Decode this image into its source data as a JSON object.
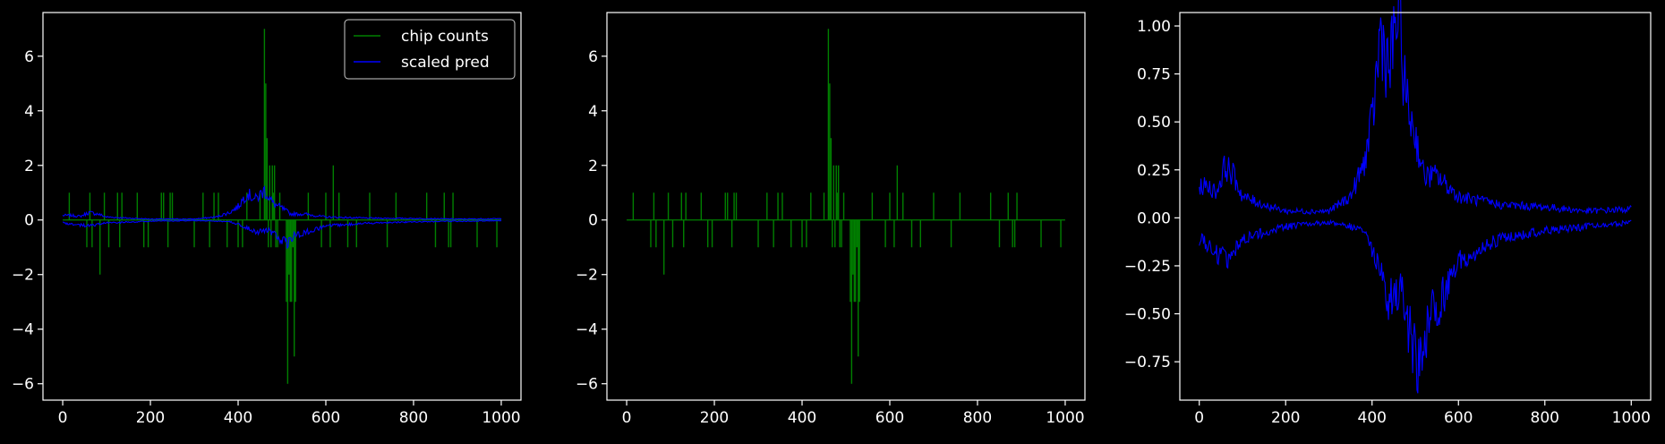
{
  "colors": {
    "background": "#000000",
    "axes": "#ffffff",
    "chip_counts": "#008000",
    "scaled_pred": "#0000ff",
    "legend_border": "#cccccc"
  },
  "chart_data": [
    {
      "type": "line",
      "title": "",
      "xlabel": "",
      "ylabel": "",
      "xlim": [
        -45,
        1045
      ],
      "ylim": [
        -6.6,
        7.6
      ],
      "xticks": [
        0,
        200,
        400,
        600,
        800,
        1000
      ],
      "yticks": [
        -6,
        -4,
        -2,
        0,
        2,
        4,
        6
      ],
      "xtick_labels": [
        "0",
        "200",
        "400",
        "600",
        "800",
        "1000"
      ],
      "ytick_labels": [
        "−6",
        "−4",
        "−2",
        "0",
        "2",
        "4",
        "6"
      ],
      "grid": false,
      "legend": {
        "placement": "top-right",
        "entries": [
          "chip counts",
          "scaled pred"
        ]
      },
      "series": [
        {
          "name": "chip counts",
          "color": "#008000",
          "style": "spikes",
          "x": [
            15,
            55,
            62,
            67,
            85,
            95,
            105,
            125,
            130,
            135,
            170,
            185,
            195,
            225,
            230,
            240,
            245,
            250,
            300,
            320,
            335,
            345,
            355,
            375,
            400,
            410,
            420,
            450,
            460,
            463,
            466,
            469,
            472,
            475,
            478,
            480,
            483,
            486,
            490,
            495,
            510,
            513,
            516,
            519,
            522,
            525,
            528,
            531,
            560,
            590,
            600,
            610,
            617,
            630,
            650,
            670,
            700,
            740,
            760,
            830,
            850,
            870,
            880,
            885,
            890,
            945,
            990
          ],
          "y": [
            1,
            -1,
            1,
            -1,
            -2,
            1,
            -1,
            1,
            -1,
            1,
            1,
            -1,
            -1,
            1,
            1,
            -1,
            1,
            1,
            -1,
            1,
            -1,
            1,
            1,
            -1,
            -1,
            -1,
            1,
            1,
            7,
            5,
            3,
            -1,
            2,
            -1,
            2,
            1,
            2,
            -1,
            -1,
            1,
            -3,
            -6,
            -2,
            -3,
            -3,
            -1,
            -5,
            -3,
            1,
            -1,
            1,
            -1,
            2,
            1,
            -1,
            -1,
            1,
            -1,
            1,
            1,
            -1,
            1,
            -1,
            -1,
            1,
            -1,
            -1
          ]
        },
        {
          "name": "scaled pred",
          "color": "#0000ff",
          "style": "envelope",
          "upper": [
            [
              0,
              0.15
            ],
            [
              20,
              0.15
            ],
            [
              40,
              0.12
            ],
            [
              60,
              0.25
            ],
            [
              80,
              0.2
            ],
            [
              100,
              0.1
            ],
            [
              150,
              0.06
            ],
            [
              200,
              0.03
            ],
            [
              300,
              0.03
            ],
            [
              350,
              0.1
            ],
            [
              380,
              0.25
            ],
            [
              400,
              0.45
            ],
            [
              420,
              0.9
            ],
            [
              440,
              0.7
            ],
            [
              460,
              1.0
            ],
            [
              480,
              0.55
            ],
            [
              500,
              0.4
            ],
            [
              520,
              0.2
            ],
            [
              550,
              0.2
            ],
            [
              600,
              0.1
            ],
            [
              700,
              0.06
            ],
            [
              800,
              0.05
            ],
            [
              900,
              0.03
            ],
            [
              1000,
              0.04
            ]
          ],
          "lower": [
            [
              0,
              -0.1
            ],
            [
              30,
              -0.15
            ],
            [
              60,
              -0.2
            ],
            [
              100,
              -0.1
            ],
            [
              200,
              -0.04
            ],
            [
              300,
              -0.02
            ],
            [
              380,
              -0.05
            ],
            [
              420,
              -0.25
            ],
            [
              440,
              -0.4
            ],
            [
              470,
              -0.35
            ],
            [
              500,
              -0.7
            ],
            [
              510,
              -0.8
            ],
            [
              530,
              -0.5
            ],
            [
              560,
              -0.4
            ],
            [
              600,
              -0.2
            ],
            [
              700,
              -0.1
            ],
            [
              800,
              -0.06
            ],
            [
              900,
              -0.04
            ],
            [
              1000,
              -0.02
            ]
          ]
        }
      ]
    },
    {
      "type": "line",
      "title": "",
      "xlabel": "",
      "ylabel": "",
      "xlim": [
        -45,
        1045
      ],
      "ylim": [
        -6.6,
        7.6
      ],
      "xticks": [
        0,
        200,
        400,
        600,
        800,
        1000
      ],
      "yticks": [
        -6,
        -4,
        -2,
        0,
        2,
        4,
        6
      ],
      "xtick_labels": [
        "0",
        "200",
        "400",
        "600",
        "800",
        "1000"
      ],
      "ytick_labels": [
        "−6",
        "−4",
        "−2",
        "0",
        "2",
        "4",
        "6"
      ],
      "grid": false,
      "series": [
        {
          "color": "#008000",
          "style": "spikes",
          "x": [
            15,
            55,
            62,
            67,
            85,
            95,
            105,
            125,
            130,
            135,
            170,
            185,
            195,
            225,
            230,
            240,
            245,
            250,
            300,
            320,
            335,
            345,
            355,
            375,
            400,
            410,
            420,
            450,
            460,
            463,
            466,
            469,
            472,
            475,
            478,
            480,
            483,
            486,
            490,
            495,
            510,
            513,
            516,
            519,
            522,
            525,
            528,
            531,
            560,
            590,
            600,
            610,
            617,
            630,
            650,
            670,
            700,
            740,
            760,
            830,
            850,
            870,
            880,
            885,
            890,
            945,
            990
          ],
          "y": [
            1,
            -1,
            1,
            -1,
            -2,
            1,
            -1,
            1,
            -1,
            1,
            1,
            -1,
            -1,
            1,
            1,
            -1,
            1,
            1,
            -1,
            1,
            -1,
            1,
            1,
            -1,
            -1,
            -1,
            1,
            1,
            7,
            5,
            3,
            -1,
            2,
            -1,
            2,
            1,
            2,
            -1,
            -1,
            1,
            -3,
            -6,
            -2,
            -3,
            -3,
            -1,
            -5,
            -3,
            1,
            -1,
            1,
            -1,
            2,
            1,
            -1,
            -1,
            1,
            -1,
            1,
            1,
            -1,
            1,
            -1,
            -1,
            1,
            -1,
            -1
          ]
        }
      ]
    },
    {
      "type": "line",
      "title": "",
      "xlabel": "",
      "ylabel": "",
      "xlim": [
        -45,
        1045
      ],
      "ylim": [
        -0.95,
        1.07
      ],
      "xticks": [
        0,
        200,
        400,
        600,
        800,
        1000
      ],
      "yticks": [
        -0.75,
        -0.5,
        -0.25,
        0.0,
        0.25,
        0.5,
        0.75,
        1.0
      ],
      "xtick_labels": [
        "0",
        "200",
        "400",
        "600",
        "800",
        "1000"
      ],
      "ytick_labels": [
        "−0.75",
        "−0.50",
        "−0.25",
        "0.00",
        "0.25",
        "0.50",
        "0.75",
        "1.00"
      ],
      "grid": false,
      "series": [
        {
          "color": "#0000ff",
          "style": "envelope",
          "upper": [
            [
              0,
              0.15
            ],
            [
              20,
              0.15
            ],
            [
              40,
              0.12
            ],
            [
              60,
              0.25
            ],
            [
              80,
              0.2
            ],
            [
              100,
              0.1
            ],
            [
              150,
              0.06
            ],
            [
              200,
              0.03
            ],
            [
              300,
              0.03
            ],
            [
              350,
              0.1
            ],
            [
              380,
              0.25
            ],
            [
              400,
              0.45
            ],
            [
              420,
              0.9
            ],
            [
              440,
              0.7
            ],
            [
              460,
              1.0
            ],
            [
              480,
              0.55
            ],
            [
              500,
              0.4
            ],
            [
              520,
              0.2
            ],
            [
              550,
              0.2
            ],
            [
              600,
              0.1
            ],
            [
              700,
              0.06
            ],
            [
              800,
              0.05
            ],
            [
              900,
              0.03
            ],
            [
              1000,
              0.04
            ]
          ],
          "lower": [
            [
              0,
              -0.1
            ],
            [
              30,
              -0.15
            ],
            [
              60,
              -0.2
            ],
            [
              100,
              -0.1
            ],
            [
              200,
              -0.04
            ],
            [
              300,
              -0.02
            ],
            [
              380,
              -0.05
            ],
            [
              420,
              -0.25
            ],
            [
              440,
              -0.4
            ],
            [
              470,
              -0.35
            ],
            [
              500,
              -0.7
            ],
            [
              510,
              -0.8
            ],
            [
              530,
              -0.5
            ],
            [
              560,
              -0.4
            ],
            [
              600,
              -0.2
            ],
            [
              700,
              -0.1
            ],
            [
              800,
              -0.06
            ],
            [
              900,
              -0.04
            ],
            [
              1000,
              -0.02
            ]
          ]
        }
      ]
    }
  ]
}
